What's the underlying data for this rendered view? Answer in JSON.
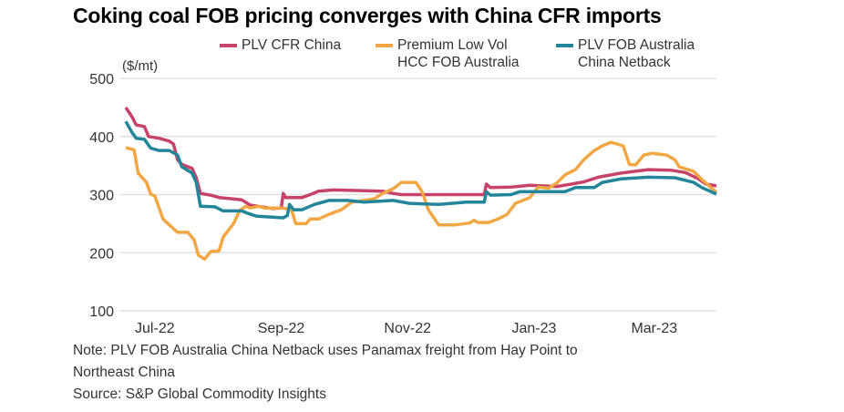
{
  "chart_data": {
    "type": "line",
    "title": "Coking coal FOB pricing converges with China CFR imports",
    "ylabel": "($/mt)",
    "ylim": [
      100,
      500
    ],
    "yticks": [
      500,
      400,
      300,
      200,
      100
    ],
    "x_unit": "days since mid-Jun 2022 (approx.)",
    "xlim": [
      0,
      285
    ],
    "xticks": [
      {
        "label": "Jul-22",
        "day": 14
      },
      {
        "label": "Sep-22",
        "day": 75
      },
      {
        "label": "Nov-22",
        "day": 136
      },
      {
        "label": "Jan-23",
        "day": 197
      },
      {
        "label": "Mar-23",
        "day": 255
      }
    ],
    "grid": true,
    "legend_position": "top",
    "series": [
      {
        "name": "PLV CFR China",
        "color": "#c8436a",
        "points": [
          [
            0,
            450
          ],
          [
            3,
            434
          ],
          [
            5,
            420
          ],
          [
            9,
            417
          ],
          [
            11,
            400
          ],
          [
            16,
            397
          ],
          [
            21,
            392
          ],
          [
            23,
            387
          ],
          [
            25,
            360
          ],
          [
            27,
            352
          ],
          [
            32,
            345
          ],
          [
            34,
            329
          ],
          [
            36,
            302
          ],
          [
            41,
            299
          ],
          [
            45,
            295
          ],
          [
            56,
            291
          ],
          [
            60,
            282
          ],
          [
            71,
            276
          ],
          [
            75,
            277
          ],
          [
            76,
            302
          ],
          [
            77,
            295
          ],
          [
            85,
            295
          ],
          [
            89,
            300
          ],
          [
            93,
            306
          ],
          [
            100,
            308
          ],
          [
            124,
            306
          ],
          [
            129,
            302
          ],
          [
            133,
            300
          ],
          [
            173,
            300
          ],
          [
            174,
            318
          ],
          [
            176,
            312
          ],
          [
            186,
            313
          ],
          [
            195,
            316
          ],
          [
            208,
            314
          ],
          [
            215,
            318
          ],
          [
            221,
            322
          ],
          [
            228,
            330
          ],
          [
            239,
            337
          ],
          [
            252,
            343
          ],
          [
            263,
            342
          ],
          [
            270,
            338
          ],
          [
            276,
            328
          ],
          [
            280,
            318
          ],
          [
            285,
            315
          ]
        ]
      },
      {
        "name": "Premium Low Vol HCC FOB Australia",
        "name_lines": [
          "Premium Low Vol",
          "HCC FOB Australia"
        ],
        "color": "#f2a745",
        "points": [
          [
            0,
            381
          ],
          [
            4,
            377
          ],
          [
            6,
            337
          ],
          [
            10,
            321
          ],
          [
            12,
            301
          ],
          [
            14,
            298
          ],
          [
            18,
            258
          ],
          [
            21,
            248
          ],
          [
            25,
            235
          ],
          [
            30,
            235
          ],
          [
            33,
            222
          ],
          [
            35,
            196
          ],
          [
            38,
            189
          ],
          [
            41,
            202
          ],
          [
            45,
            203
          ],
          [
            47,
            227
          ],
          [
            52,
            250
          ],
          [
            55,
            273
          ],
          [
            58,
            280
          ],
          [
            60,
            277
          ],
          [
            64,
            280
          ],
          [
            67,
            277
          ],
          [
            76,
            277
          ],
          [
            80,
            274
          ],
          [
            82,
            250
          ],
          [
            87,
            250
          ],
          [
            89,
            258
          ],
          [
            93,
            258
          ],
          [
            98,
            266
          ],
          [
            104,
            274
          ],
          [
            109,
            287
          ],
          [
            115,
            290
          ],
          [
            120,
            293
          ],
          [
            124,
            302
          ],
          [
            129,
            310
          ],
          [
            133,
            321
          ],
          [
            140,
            321
          ],
          [
            143,
            305
          ],
          [
            146,
            274
          ],
          [
            151,
            248
          ],
          [
            155,
            248
          ],
          [
            159,
            248
          ],
          [
            166,
            251
          ],
          [
            168,
            256
          ],
          [
            170,
            252
          ],
          [
            175,
            252
          ],
          [
            179,
            257
          ],
          [
            184,
            266
          ],
          [
            188,
            285
          ],
          [
            195,
            295
          ],
          [
            199,
            313
          ],
          [
            204,
            311
          ],
          [
            208,
            320
          ],
          [
            212,
            334
          ],
          [
            217,
            343
          ],
          [
            221,
            360
          ],
          [
            226,
            376
          ],
          [
            230,
            384
          ],
          [
            234,
            390
          ],
          [
            237,
            387
          ],
          [
            240,
            384
          ],
          [
            243,
            352
          ],
          [
            246,
            351
          ],
          [
            250,
            368
          ],
          [
            254,
            371
          ],
          [
            261,
            368
          ],
          [
            265,
            360
          ],
          [
            267,
            348
          ],
          [
            274,
            340
          ],
          [
            278,
            326
          ],
          [
            285,
            304
          ]
        ]
      },
      {
        "name": "PLV FOB Australia China Netback",
        "name_lines": [
          "PLV FOB Australia",
          "China Netback"
        ],
        "color": "#23859a",
        "points": [
          [
            0,
            426
          ],
          [
            3,
            407
          ],
          [
            5,
            397
          ],
          [
            9,
            395
          ],
          [
            12,
            380
          ],
          [
            16,
            376
          ],
          [
            21,
            376
          ],
          [
            25,
            368
          ],
          [
            27,
            348
          ],
          [
            32,
            337
          ],
          [
            34,
            321
          ],
          [
            36,
            280
          ],
          [
            43,
            279
          ],
          [
            47,
            272
          ],
          [
            56,
            272
          ],
          [
            58,
            269
          ],
          [
            63,
            263
          ],
          [
            76,
            260
          ],
          [
            78,
            264
          ],
          [
            79,
            283
          ],
          [
            81,
            274
          ],
          [
            85,
            274
          ],
          [
            91,
            283
          ],
          [
            98,
            290
          ],
          [
            107,
            290
          ],
          [
            115,
            287
          ],
          [
            129,
            290
          ],
          [
            137,
            285
          ],
          [
            151,
            283
          ],
          [
            164,
            287
          ],
          [
            173,
            287
          ],
          [
            174,
            305
          ],
          [
            176,
            299
          ],
          [
            186,
            300
          ],
          [
            190,
            305
          ],
          [
            204,
            305
          ],
          [
            212,
            305
          ],
          [
            217,
            312
          ],
          [
            226,
            312
          ],
          [
            230,
            321
          ],
          [
            239,
            327
          ],
          [
            252,
            330
          ],
          [
            265,
            329
          ],
          [
            274,
            321
          ],
          [
            278,
            312
          ],
          [
            285,
            301
          ]
        ]
      }
    ]
  },
  "notes": {
    "line1": "Note: PLV FOB Australia China Netback uses Panamax freight from Hay Point to",
    "line2": "Northeast China",
    "source": "Source: S&P Global Commodity Insights"
  }
}
